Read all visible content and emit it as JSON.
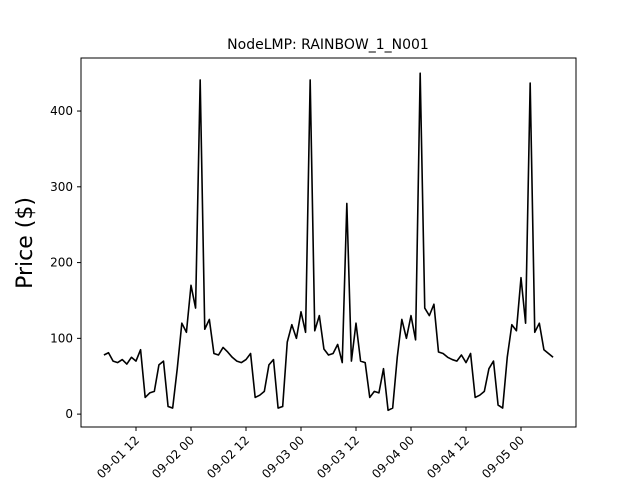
{
  "chart_data": {
    "type": "line",
    "title": "NodeLMP: RAINBOW_1_N001",
    "xlabel": "",
    "ylabel": "Price ($)",
    "x_unit": "datetime",
    "xlim": [
      "2025-09-01T00:00",
      "2025-09-05T12:00"
    ],
    "ylim": [
      -17,
      470
    ],
    "x_ticks": [
      {
        "value": "2025-09-01T12:00",
        "label": "09-01 12"
      },
      {
        "value": "2025-09-02T00:00",
        "label": "09-02 00"
      },
      {
        "value": "2025-09-02T12:00",
        "label": "09-02 12"
      },
      {
        "value": "2025-09-03T00:00",
        "label": "09-03 00"
      },
      {
        "value": "2025-09-03T12:00",
        "label": "09-03 12"
      },
      {
        "value": "2025-09-04T00:00",
        "label": "09-04 00"
      },
      {
        "value": "2025-09-04T12:00",
        "label": "09-04 12"
      },
      {
        "value": "2025-09-05T00:00",
        "label": "09-05 00"
      }
    ],
    "y_ticks": [
      0,
      100,
      200,
      300,
      400
    ],
    "grid": false,
    "line_color": "#000000",
    "series": [
      {
        "x": [
          "2025-09-01T05:00",
          "2025-09-01T06:00",
          "2025-09-01T07:00",
          "2025-09-01T08:00",
          "2025-09-01T09:00",
          "2025-09-01T10:00",
          "2025-09-01T11:00",
          "2025-09-01T12:00",
          "2025-09-01T13:00",
          "2025-09-01T14:00",
          "2025-09-01T15:00",
          "2025-09-01T16:00",
          "2025-09-01T17:00",
          "2025-09-01T18:00",
          "2025-09-01T19:00",
          "2025-09-01T20:00",
          "2025-09-01T21:00",
          "2025-09-01T22:00",
          "2025-09-01T23:00",
          "2025-09-02T00:00",
          "2025-09-02T01:00",
          "2025-09-02T02:00",
          "2025-09-02T03:00",
          "2025-09-02T04:00",
          "2025-09-02T05:00",
          "2025-09-02T06:00",
          "2025-09-02T07:00",
          "2025-09-02T08:00",
          "2025-09-02T09:00",
          "2025-09-02T10:00",
          "2025-09-02T11:00",
          "2025-09-02T12:00",
          "2025-09-02T13:00",
          "2025-09-02T14:00",
          "2025-09-02T15:00",
          "2025-09-02T16:00",
          "2025-09-02T17:00",
          "2025-09-02T18:00",
          "2025-09-02T19:00",
          "2025-09-02T20:00",
          "2025-09-02T21:00",
          "2025-09-02T22:00",
          "2025-09-02T23:00",
          "2025-09-03T00:00",
          "2025-09-03T01:00",
          "2025-09-03T02:00",
          "2025-09-03T03:00",
          "2025-09-03T04:00",
          "2025-09-03T05:00",
          "2025-09-03T06:00",
          "2025-09-03T07:00",
          "2025-09-03T08:00",
          "2025-09-03T09:00",
          "2025-09-03T10:00",
          "2025-09-03T11:00",
          "2025-09-03T12:00",
          "2025-09-03T13:00",
          "2025-09-03T14:00",
          "2025-09-03T15:00",
          "2025-09-03T16:00",
          "2025-09-03T17:00",
          "2025-09-03T18:00",
          "2025-09-03T19:00",
          "2025-09-03T20:00",
          "2025-09-03T21:00",
          "2025-09-03T22:00",
          "2025-09-03T23:00",
          "2025-09-04T00:00",
          "2025-09-04T01:00",
          "2025-09-04T02:00",
          "2025-09-04T03:00",
          "2025-09-04T04:00",
          "2025-09-04T05:00",
          "2025-09-04T06:00",
          "2025-09-04T07:00",
          "2025-09-04T08:00",
          "2025-09-04T09:00",
          "2025-09-04T10:00",
          "2025-09-04T11:00",
          "2025-09-04T12:00",
          "2025-09-04T13:00",
          "2025-09-04T14:00",
          "2025-09-04T15:00",
          "2025-09-04T16:00",
          "2025-09-04T17:00",
          "2025-09-04T18:00",
          "2025-09-04T19:00",
          "2025-09-04T20:00",
          "2025-09-04T21:00",
          "2025-09-04T22:00",
          "2025-09-04T23:00",
          "2025-09-05T00:00",
          "2025-09-05T01:00",
          "2025-09-05T02:00",
          "2025-09-05T03:00",
          "2025-09-05T04:00",
          "2025-09-05T05:00",
          "2025-09-05T06:00",
          "2025-09-05T07:00"
        ],
        "values": [
          78,
          81,
          70,
          68,
          72,
          66,
          75,
          70,
          85,
          22,
          28,
          30,
          65,
          70,
          10,
          8,
          60,
          120,
          108,
          170,
          140,
          441,
          112,
          125,
          80,
          78,
          88,
          82,
          75,
          70,
          68,
          72,
          80,
          22,
          25,
          30,
          65,
          72,
          8,
          10,
          95,
          118,
          100,
          135,
          108,
          441,
          110,
          130,
          86,
          78,
          80,
          92,
          68,
          278,
          70,
          120,
          70,
          68,
          22,
          30,
          28,
          60,
          5,
          8,
          75,
          125,
          100,
          130,
          98,
          450,
          140,
          130,
          145,
          82,
          80,
          75,
          72,
          70,
          78,
          68,
          80,
          22,
          25,
          30,
          60,
          70,
          12,
          8,
          75,
          118,
          110,
          180,
          120,
          437,
          108,
          120,
          85,
          80,
          75
        ]
      }
    ]
  }
}
